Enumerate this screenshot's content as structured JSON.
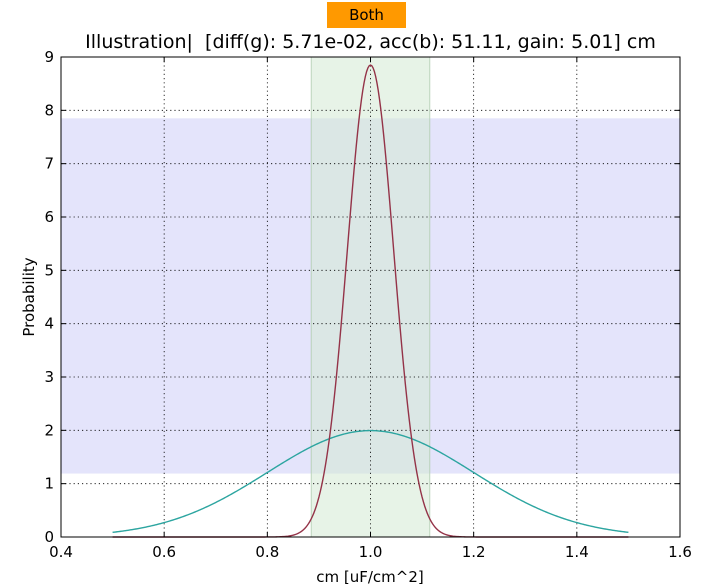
{
  "badge": {
    "label": "Both"
  },
  "chart_data": {
    "type": "line",
    "title": "Illustration|  [diff(g): 5.71e-02, acc(b): 51.11, gain: 5.01] cm",
    "xlabel": "cm [uF/cm^2]",
    "ylabel": "Probability",
    "xlim": [
      0.4,
      1.6
    ],
    "ylim": [
      0,
      9
    ],
    "xticks": [
      "0.4",
      "0.6",
      "0.8",
      "1.0",
      "1.2",
      "1.4",
      "1.6"
    ],
    "yticks": [
      "0",
      "1",
      "2",
      "3",
      "4",
      "5",
      "6",
      "7",
      "8",
      "9"
    ],
    "grid": true,
    "bands": [
      {
        "orientation": "horizontal",
        "from": 1.19,
        "to": 7.85,
        "color": "#e3e3fb"
      },
      {
        "orientation": "vertical",
        "from": 0.885,
        "to": 1.115,
        "color": "#d4e9d4"
      }
    ],
    "series": [
      {
        "mean": 1.0,
        "sd": 0.2,
        "x_range": [
          0.5,
          1.5
        ],
        "peak": 1.995,
        "color": "#2ca5a0"
      },
      {
        "mean": 1.0,
        "sd": 0.045,
        "x_range": [
          0.5,
          1.5
        ],
        "peak": 8.85,
        "color": "#943348"
      }
    ]
  }
}
